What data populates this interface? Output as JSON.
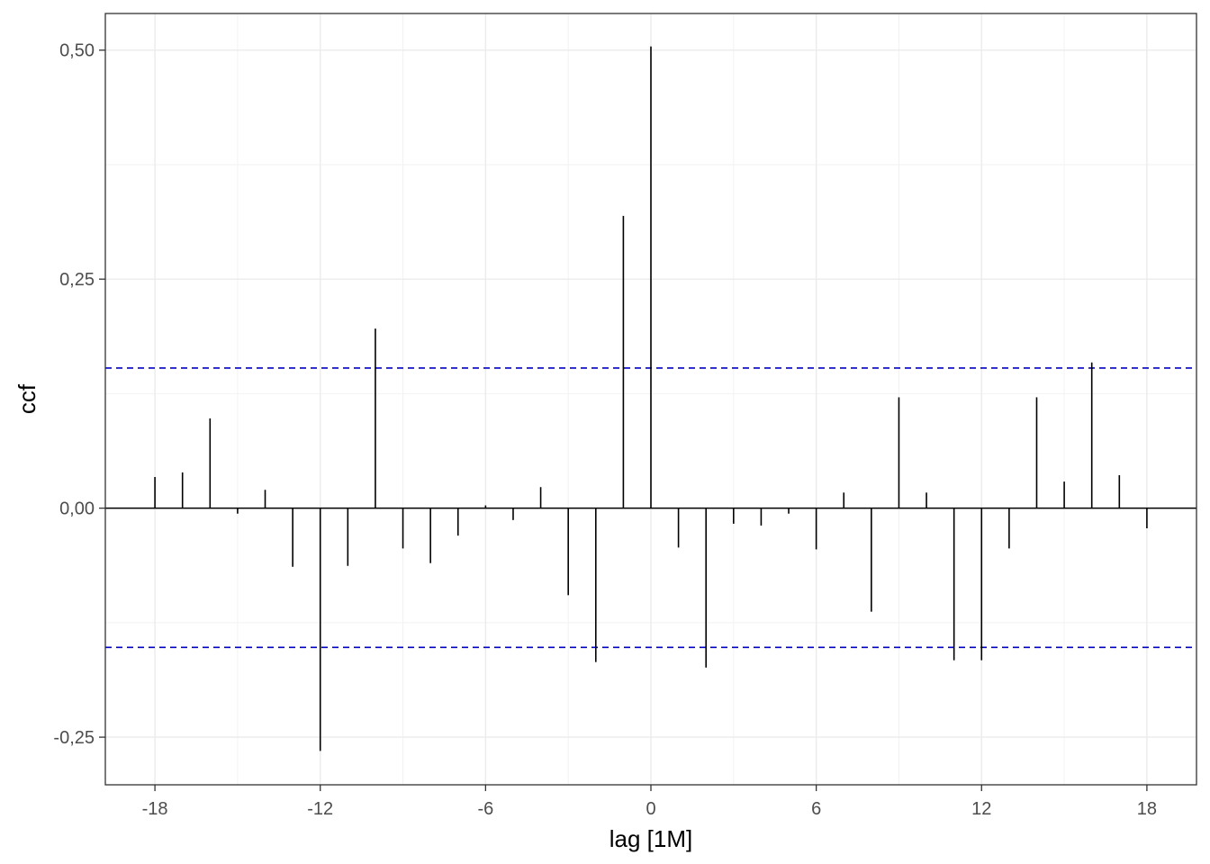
{
  "chart_data": {
    "type": "bar",
    "subtype": "lollipop-spikes",
    "xlabel": "lag [1M]",
    "ylabel": "ccf",
    "xlim": [
      -19.8,
      19.8
    ],
    "ylim": [
      -0.302,
      0.54
    ],
    "x_ticks": [
      -18,
      -12,
      -6,
      0,
      6,
      12,
      18
    ],
    "x_tick_labels": [
      "-18",
      "-12",
      "-6",
      "0",
      "6",
      "12",
      "18"
    ],
    "y_ticks": [
      -0.25,
      0,
      0.25,
      0.5
    ],
    "y_tick_labels": [
      "-0,25",
      "0,00",
      "0,25",
      "0,50"
    ],
    "confidence_bounds": [
      0.153,
      -0.152
    ],
    "confidence_color": "#0000cc",
    "grid": true,
    "x": [
      -18,
      -17,
      -16,
      -15,
      -14,
      -13,
      -12,
      -11,
      -10,
      -9,
      -8,
      -7,
      -6,
      -5,
      -4,
      -3,
      -2,
      -1,
      0,
      1,
      2,
      3,
      4,
      5,
      6,
      7,
      8,
      9,
      10,
      11,
      12,
      13,
      14,
      15,
      16,
      17,
      18
    ],
    "values": [
      0.034,
      0.039,
      0.098,
      -0.006,
      0.02,
      -0.064,
      -0.265,
      -0.063,
      0.196,
      -0.044,
      -0.06,
      -0.03,
      0.003,
      -0.013,
      0.023,
      -0.095,
      -0.168,
      0.319,
      0.504,
      -0.043,
      -0.174,
      -0.017,
      -0.019,
      -0.006,
      -0.045,
      0.017,
      -0.113,
      0.121,
      0.017,
      -0.166,
      -0.166,
      -0.044,
      0.121,
      0.029,
      0.159,
      0.036,
      -0.022
    ]
  }
}
